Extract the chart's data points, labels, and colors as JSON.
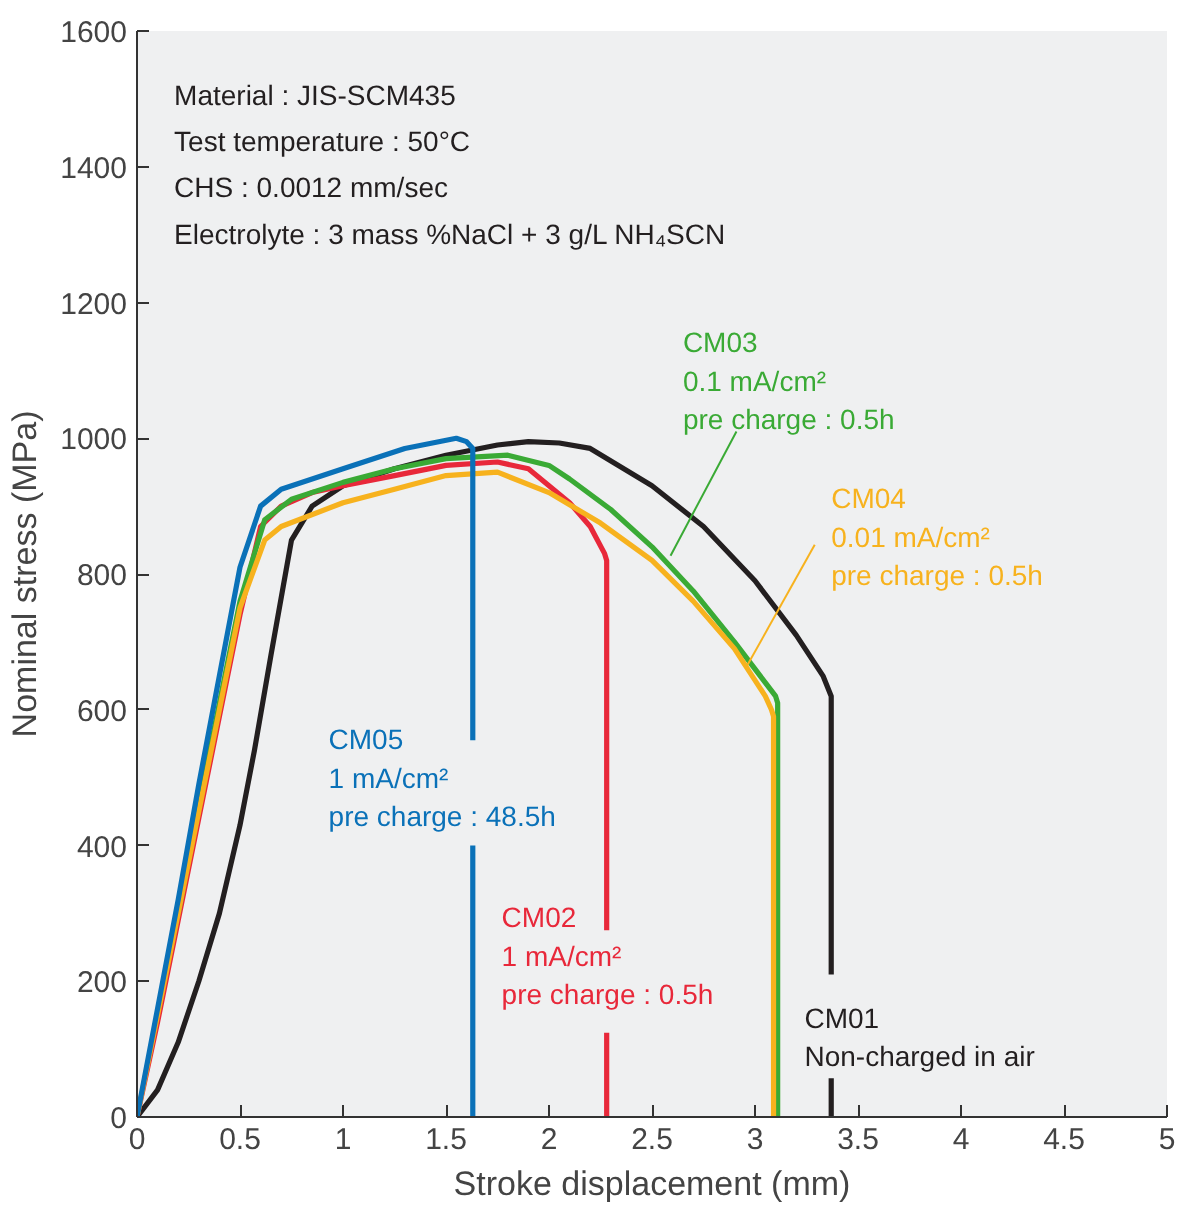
{
  "chart_data": {
    "type": "line",
    "xlabel": "Stroke displacement (mm)",
    "ylabel": "Nominal stress (MPa)",
    "xlim": [
      0,
      5
    ],
    "ylim": [
      0,
      1600
    ],
    "xticks": [
      0,
      0.5,
      1,
      1.5,
      2,
      2.5,
      3,
      3.5,
      4,
      4.5,
      5
    ],
    "yticks": [
      0,
      200,
      400,
      600,
      800,
      1000,
      1200,
      1400,
      1600
    ],
    "grid": false,
    "marker": "none",
    "line_style": "solid",
    "annotations": [
      "Material : JIS-SCM435",
      "Test temperature : 50°C",
      "CHS : 0.0012 mm/sec",
      "Electrolyte : 3 mass %NaCl + 3 g/L NH₄SCN"
    ],
    "series": [
      {
        "name": "CM01\nNon-charged in air",
        "color": "#231f20",
        "x": [
          0,
          0.1,
          0.2,
          0.3,
          0.4,
          0.5,
          0.57,
          0.65,
          0.75,
          0.85,
          1.0,
          1.25,
          1.5,
          1.75,
          1.9,
          2.05,
          2.2,
          2.5,
          2.75,
          3.0,
          3.2,
          3.33,
          3.37,
          3.37,
          null,
          3.37,
          3.37
        ],
        "values": [
          0,
          40,
          110,
          200,
          300,
          430,
          540,
          680,
          850,
          900,
          930,
          955,
          975,
          990,
          995,
          993,
          985,
          930,
          870,
          790,
          710,
          650,
          620,
          210,
          null,
          57,
          0
        ]
      },
      {
        "name": "CM02\n1 mA/cm²\npre charge : 0.5h",
        "color": "#e8283a",
        "x": [
          0,
          0.1,
          0.2,
          0.3,
          0.4,
          0.5,
          0.6,
          0.7,
          0.85,
          1.0,
          1.25,
          1.5,
          1.75,
          1.9,
          2.0,
          2.1,
          2.2,
          2.27,
          2.28,
          2.28,
          null,
          2.28,
          2.28
        ],
        "values": [
          0,
          140,
          290,
          440,
          590,
          740,
          870,
          900,
          920,
          930,
          945,
          960,
          965,
          955,
          930,
          905,
          870,
          830,
          820,
          275,
          null,
          124,
          0
        ]
      },
      {
        "name": "CM03\n0.1 mA/cm²\npre charge : 0.5h",
        "color": "#3aaa35",
        "x": [
          0.2,
          0.3,
          0.4,
          0.5,
          0.62,
          0.75,
          1.0,
          1.25,
          1.5,
          1.8,
          2.0,
          2.1,
          2.3,
          2.5,
          2.7,
          2.9,
          3.05,
          3.1,
          3.11,
          3.11
        ],
        "values": [
          300,
          460,
          610,
          760,
          880,
          910,
          935,
          955,
          970,
          975,
          960,
          940,
          895,
          840,
          775,
          700,
          640,
          620,
          610,
          0
        ]
      },
      {
        "name": "CM04\n0.01 mA/cm²\npre charge : 0.5h",
        "color": "#f7b21e",
        "x": [
          0,
          0.1,
          0.2,
          0.3,
          0.4,
          0.5,
          0.62,
          0.7,
          1.0,
          1.25,
          1.5,
          1.75,
          2.0,
          2.25,
          2.5,
          2.7,
          2.9,
          3.05,
          3.08,
          3.09,
          3.09
        ],
        "values": [
          0,
          150,
          300,
          450,
          600,
          750,
          850,
          870,
          905,
          925,
          945,
          950,
          920,
          875,
          820,
          760,
          690,
          620,
          600,
          590,
          0
        ]
      },
      {
        "name": "CM05\n1 mA/cm²\npre charge : 48.5h",
        "color": "#0a71b8",
        "x": [
          0,
          0.1,
          0.2,
          0.3,
          0.4,
          0.5,
          0.6,
          0.7,
          1.0,
          1.3,
          1.55,
          1.6,
          1.63,
          1.63,
          null,
          1.63,
          1.63
        ],
        "values": [
          0,
          160,
          320,
          490,
          650,
          810,
          900,
          925,
          955,
          985,
          1000,
          995,
          985,
          555,
          null,
          400,
          0
        ]
      }
    ]
  }
}
